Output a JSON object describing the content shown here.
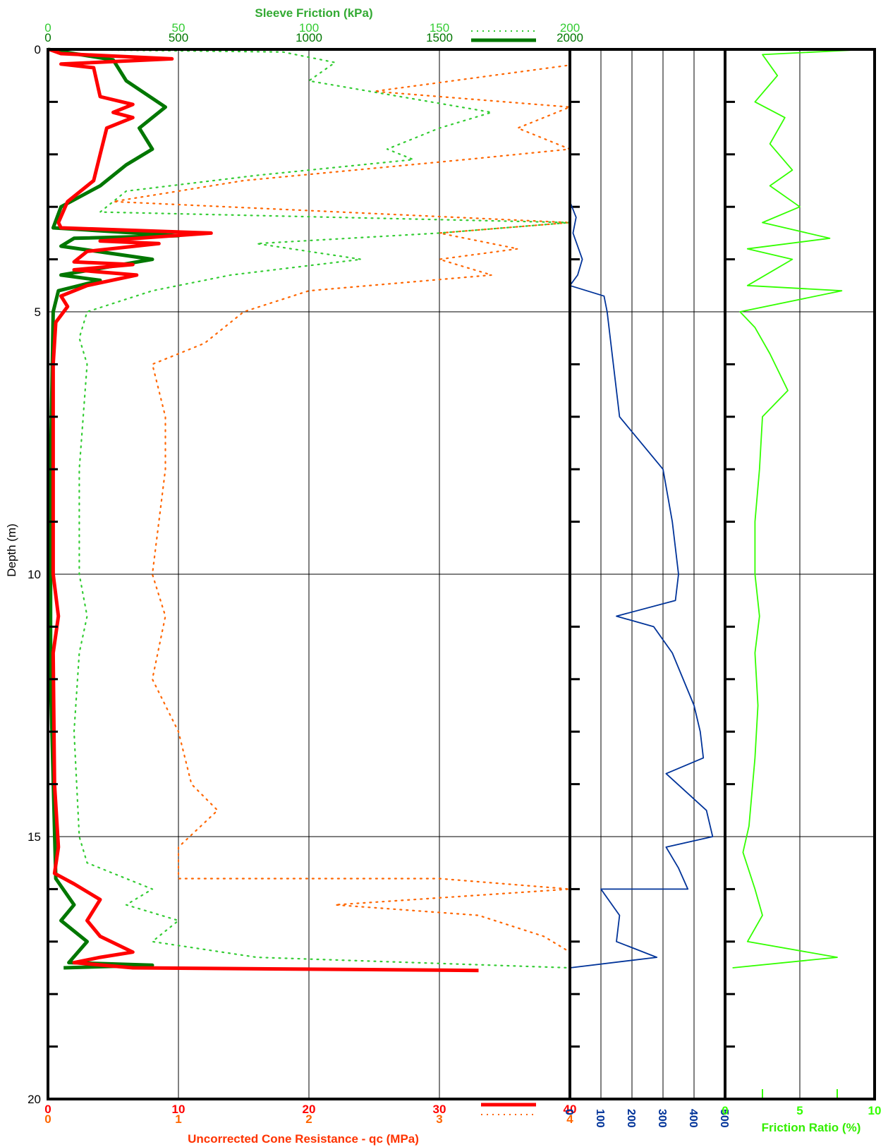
{
  "chart_data": {
    "type": "line",
    "depth_axis": {
      "label": "Depth (m)",
      "range": [
        0,
        20
      ],
      "ticks": [
        "0",
        "5",
        "10",
        "15",
        "20"
      ],
      "minor_step": 1,
      "inverted": true
    },
    "panels": [
      {
        "id": "cone-sleeve",
        "bottom_axes": [
          {
            "title": "Uncorrected Cone Resistance - qc (MPa)",
            "range": [
              0,
              40
            ],
            "ticks": [
              "0",
              "10",
              "20",
              "30",
              "40"
            ],
            "color": "#ff0000",
            "series_style": "solid"
          },
          {
            "range": [
              0,
              4
            ],
            "ticks": [
              "0",
              "1",
              "2",
              "3",
              "4"
            ],
            "color": "#ff6600",
            "series_style": "dotted"
          }
        ],
        "top_axes": [
          {
            "title": "Sleeve Friction (kPa)",
            "range": [
              0,
              200
            ],
            "ticks": [
              "0",
              "50",
              "100",
              "150",
              "200"
            ],
            "color": "#33cc33",
            "series_style": "dotted"
          },
          {
            "range": [
              0,
              2000
            ],
            "ticks": [
              "0",
              "500",
              "1000",
              "1500",
              "2000"
            ],
            "color": "#007700",
            "series_style": "solid"
          }
        ],
        "series": [
          {
            "axis": "qc 0-40 MPa",
            "color": "#ff0000",
            "points": [
              [
                0.1,
                0
              ],
              [
                1.0,
                0.08
              ],
              [
                9.5,
                0.18
              ],
              [
                1.0,
                0.28
              ],
              [
                3.5,
                0.35
              ],
              [
                4.0,
                0.9
              ],
              [
                6.5,
                1.05
              ],
              [
                5.0,
                1.2
              ],
              [
                6.5,
                1.3
              ],
              [
                4.5,
                1.5
              ],
              [
                4.0,
                2.0
              ],
              [
                3.5,
                2.5
              ],
              [
                1.5,
                2.9
              ],
              [
                0.8,
                3.3
              ],
              [
                1.0,
                3.4
              ],
              [
                12.5,
                3.5
              ],
              [
                4.0,
                3.65
              ],
              [
                8.5,
                3.7
              ],
              [
                3.0,
                3.85
              ],
              [
                2.0,
                4.05
              ],
              [
                6.5,
                4.1
              ],
              [
                2.0,
                4.2
              ],
              [
                6.8,
                4.3
              ],
              [
                3.0,
                4.5
              ],
              [
                1.0,
                4.7
              ],
              [
                1.5,
                4.9
              ],
              [
                0.6,
                5.2
              ],
              [
                0.4,
                6.0
              ],
              [
                0.4,
                10.0
              ],
              [
                0.8,
                10.8
              ],
              [
                0.4,
                11.5
              ],
              [
                0.5,
                14.0
              ],
              [
                0.8,
                15.2
              ],
              [
                0.5,
                15.7
              ],
              [
                2.0,
                15.9
              ],
              [
                4.0,
                16.2
              ],
              [
                3.0,
                16.6
              ],
              [
                4.0,
                16.9
              ],
              [
                6.5,
                17.2
              ],
              [
                4.0,
                17.3
              ],
              [
                2.0,
                17.4
              ],
              [
                6.5,
                17.5
              ],
              [
                33.0,
                17.55
              ]
            ]
          },
          {
            "axis": "fs 0-2000 kPa",
            "color": "#007700",
            "points": [
              [
                0,
                0
              ],
              [
                250,
                0.2
              ],
              [
                300,
                0.6
              ],
              [
                450,
                1.1
              ],
              [
                350,
                1.5
              ],
              [
                400,
                1.9
              ],
              [
                300,
                2.2
              ],
              [
                200,
                2.6
              ],
              [
                50,
                3.0
              ],
              [
                20,
                3.4
              ],
              [
                500,
                3.55
              ],
              [
                100,
                3.6
              ],
              [
                50,
                3.75
              ],
              [
                400,
                4.0
              ],
              [
                50,
                4.3
              ],
              [
                200,
                4.4
              ],
              [
                40,
                4.6
              ],
              [
                20,
                5.0
              ],
              [
                10,
                8.0
              ],
              [
                10,
                12.0
              ],
              [
                30,
                15.8
              ],
              [
                100,
                16.3
              ],
              [
                50,
                16.6
              ],
              [
                150,
                17.0
              ],
              [
                80,
                17.4
              ],
              [
                400,
                17.45
              ],
              [
                60,
                17.5
              ]
            ]
          },
          {
            "axis": "fs 0-200 kPa",
            "color": "#33cc33",
            "points": [
              [
                0,
                0
              ],
              [
                90,
                0.05
              ],
              [
                110,
                0.25
              ],
              [
                100,
                0.6
              ],
              [
                170,
                1.2
              ],
              [
                150,
                1.5
              ],
              [
                130,
                1.9
              ],
              [
                140,
                2.1
              ],
              [
                80,
                2.4
              ],
              [
                30,
                2.7
              ],
              [
                20,
                3.1
              ],
              [
                200,
                3.3
              ],
              [
                150,
                3.5
              ],
              [
                80,
                3.7
              ],
              [
                120,
                4.0
              ],
              [
                70,
                4.3
              ],
              [
                40,
                4.6
              ],
              [
                15,
                5.0
              ],
              [
                12,
                5.5
              ],
              [
                15,
                6.0
              ],
              [
                12,
                8.0
              ],
              [
                12,
                10.0
              ],
              [
                15,
                10.8
              ],
              [
                12,
                11.5
              ],
              [
                10,
                13.0
              ],
              [
                12,
                15.0
              ],
              [
                15,
                15.5
              ],
              [
                40,
                16.0
              ],
              [
                30,
                16.3
              ],
              [
                50,
                16.6
              ],
              [
                40,
                17.0
              ],
              [
                80,
                17.3
              ],
              [
                200,
                17.5
              ]
            ]
          },
          {
            "axis": "qc 0-4 MPa",
            "color": "#ff6600",
            "points": [
              [
                4.0,
                0
              ],
              [
                4.0,
                0.3
              ],
              [
                2.5,
                0.8
              ],
              [
                4.0,
                1.1
              ],
              [
                3.6,
                1.5
              ],
              [
                4.0,
                1.9
              ],
              [
                3.2,
                2.1
              ],
              [
                1.5,
                2.5
              ],
              [
                0.5,
                2.9
              ],
              [
                4.0,
                3.3
              ],
              [
                3.0,
                3.5
              ],
              [
                3.6,
                3.8
              ],
              [
                3.0,
                4.0
              ],
              [
                3.4,
                4.3
              ],
              [
                2.0,
                4.6
              ],
              [
                1.5,
                5.0
              ],
              [
                1.2,
                5.6
              ],
              [
                0.8,
                6.0
              ],
              [
                0.9,
                7.0
              ],
              [
                0.9,
                8.0
              ],
              [
                0.8,
                10.0
              ],
              [
                0.9,
                10.8
              ],
              [
                0.8,
                12.0
              ],
              [
                1.0,
                13.0
              ],
              [
                1.1,
                14.0
              ],
              [
                1.3,
                14.5
              ],
              [
                1.0,
                15.2
              ],
              [
                1.0,
                15.8
              ],
              [
                3.0,
                15.8
              ],
              [
                4.0,
                16.0
              ],
              [
                2.2,
                16.3
              ],
              [
                3.3,
                16.5
              ],
              [
                3.8,
                16.9
              ],
              [
                4.0,
                17.2
              ],
              [
                4.0,
                17.5
              ]
            ]
          }
        ]
      },
      {
        "id": "pore-pressure",
        "bottom_axis": {
          "range": [
            0,
            500
          ],
          "ticks": [
            "0",
            "100",
            "200",
            "300",
            "400",
            "500"
          ],
          "color": "#003399"
        },
        "series": [
          {
            "color": "#003399",
            "points": [
              [
                0,
                0
              ],
              [
                0,
                2.9
              ],
              [
                20,
                3.2
              ],
              [
                10,
                3.5
              ],
              [
                40,
                4.0
              ],
              [
                25,
                4.3
              ],
              [
                0,
                4.5
              ],
              [
                110,
                4.7
              ],
              [
                120,
                5.0
              ],
              [
                130,
                5.5
              ],
              [
                160,
                7.0
              ],
              [
                300,
                8.0
              ],
              [
                330,
                9.0
              ],
              [
                350,
                10.0
              ],
              [
                340,
                10.5
              ],
              [
                150,
                10.8
              ],
              [
                270,
                11.0
              ],
              [
                330,
                11.5
              ],
              [
                400,
                12.5
              ],
              [
                420,
                13.0
              ],
              [
                430,
                13.5
              ],
              [
                310,
                13.8
              ],
              [
                440,
                14.5
              ],
              [
                460,
                15.0
              ],
              [
                310,
                15.2
              ],
              [
                350,
                15.6
              ],
              [
                380,
                16.0
              ],
              [
                100,
                16.0
              ],
              [
                160,
                16.5
              ],
              [
                150,
                17.0
              ],
              [
                280,
                17.3
              ],
              [
                0,
                17.5
              ]
            ]
          }
        ]
      },
      {
        "id": "friction-ratio",
        "bottom_axis": {
          "title": "Friction Ratio (%)",
          "range": [
            0,
            10
          ],
          "ticks": [
            "0",
            "5",
            "10"
          ],
          "color": "#33ff00"
        },
        "series": [
          {
            "color": "#33ff00",
            "points": [
              [
                9.5,
                0
              ],
              [
                2.5,
                0.1
              ],
              [
                3.5,
                0.5
              ],
              [
                2.0,
                1.0
              ],
              [
                4.0,
                1.3
              ],
              [
                3.0,
                1.8
              ],
              [
                4.5,
                2.3
              ],
              [
                3.0,
                2.6
              ],
              [
                5.0,
                3.0
              ],
              [
                2.5,
                3.3
              ],
              [
                7.0,
                3.6
              ],
              [
                1.5,
                3.8
              ],
              [
                4.5,
                4.0
              ],
              [
                1.5,
                4.5
              ],
              [
                7.8,
                4.6
              ],
              [
                1.0,
                5.0
              ],
              [
                2.0,
                5.3
              ],
              [
                3.0,
                5.8
              ],
              [
                4.2,
                6.5
              ],
              [
                2.5,
                7.0
              ],
              [
                2.3,
                8.0
              ],
              [
                2.0,
                9.0
              ],
              [
                2.0,
                10.0
              ],
              [
                2.3,
                10.8
              ],
              [
                2.0,
                11.5
              ],
              [
                2.2,
                12.5
              ],
              [
                2.0,
                13.5
              ],
              [
                1.6,
                14.8
              ],
              [
                1.2,
                15.3
              ],
              [
                2.0,
                16.0
              ],
              [
                2.5,
                16.5
              ],
              [
                1.5,
                17.0
              ],
              [
                7.5,
                17.3
              ],
              [
                0.5,
                17.5
              ]
            ]
          }
        ]
      }
    ],
    "grid": true
  }
}
